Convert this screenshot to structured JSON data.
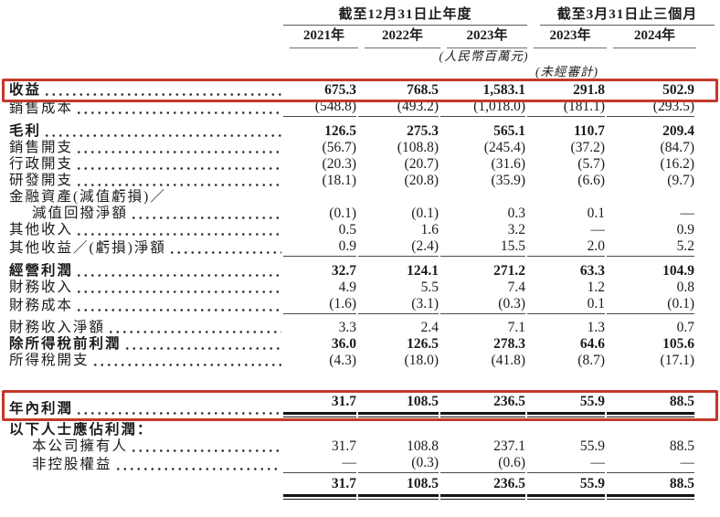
{
  "table": {
    "col_groups": [
      {
        "label": "截至12月31日止年度",
        "span": 3
      },
      {
        "label": "截至3月31日止三個月",
        "span": 2
      }
    ],
    "columns": [
      "2021年",
      "2022年",
      "2023年",
      "2023年",
      "2024年"
    ],
    "unit_note": "(人民幣百萬元)",
    "unaudited_note": "(未經審計)",
    "rows": [
      {
        "label": "收益",
        "bold": true,
        "highlight": true,
        "values": [
          "675.3",
          "768.5",
          "1,583.1",
          "291.8",
          "502.9"
        ]
      },
      {
        "label": "銷售成本",
        "rule_below": true,
        "values": [
          "(548.8)",
          "(493.2)",
          "(1,018.0)",
          "(181.1)",
          "(293.5)"
        ]
      },
      {
        "label": "毛利",
        "bold": true,
        "gap_before": 9,
        "values": [
          "126.5",
          "275.3",
          "565.1",
          "110.7",
          "209.4"
        ]
      },
      {
        "label": "銷售開支",
        "values": [
          "(56.7)",
          "(108.8)",
          "(245.4)",
          "(37.2)",
          "(84.7)"
        ]
      },
      {
        "label": "行政開支",
        "values": [
          "(20.3)",
          "(20.7)",
          "(31.6)",
          "(5.7)",
          "(16.2)"
        ]
      },
      {
        "label": "研發開支",
        "values": [
          "(18.1)",
          "(20.8)",
          "(35.9)",
          "(6.6)",
          "(9.7)"
        ]
      },
      {
        "label": "金融資產(減值虧損)／",
        "no_leader": true,
        "values": null
      },
      {
        "label": "減值回撥淨額",
        "indent": true,
        "values": [
          "(0.1)",
          "(0.1)",
          "0.3",
          "0.1",
          "—"
        ]
      },
      {
        "label": "其他收入",
        "values": [
          "0.5",
          "1.6",
          "3.2",
          "—",
          "0.9"
        ]
      },
      {
        "label": "其他收益／(虧損)淨額",
        "rule_below": true,
        "values": [
          "0.9",
          "(2.4)",
          "15.5",
          "2.0",
          "5.2"
        ]
      },
      {
        "label": "經營利潤",
        "bold": true,
        "gap_before": 9,
        "values": [
          "32.7",
          "124.1",
          "271.2",
          "63.3",
          "104.9"
        ]
      },
      {
        "label": "財務收入",
        "values": [
          "4.9",
          "5.5",
          "7.4",
          "1.2",
          "0.8"
        ]
      },
      {
        "label": "財務成本",
        "rule_below": true,
        "values": [
          "(1.6)",
          "(3.1)",
          "(0.3)",
          "0.1",
          "(0.1)"
        ]
      },
      {
        "label": "財務收入淨額",
        "gap_before": 8,
        "values": [
          "3.3",
          "2.4",
          "7.1",
          "1.3",
          "0.7"
        ]
      },
      {
        "label": "除所得稅前利潤",
        "bold": true,
        "values": [
          "36.0",
          "126.5",
          "278.3",
          "64.6",
          "105.6"
        ]
      },
      {
        "label": "所得稅開支",
        "values": [
          "(4.3)",
          "(18.0)",
          "(41.8)",
          "(8.7)",
          "(17.1)"
        ]
      },
      {
        "label": "年內利潤",
        "bold": true,
        "highlight": true,
        "double_rule_below": true,
        "gap_before": 27,
        "values": [
          "31.7",
          "108.5",
          "236.5",
          "55.9",
          "88.5"
        ]
      },
      {
        "label": "以下人士應佔利潤：",
        "bold": true,
        "no_leader": true,
        "gap_before": 13,
        "values": null
      },
      {
        "label": "本公司擁有人",
        "indent": true,
        "values": [
          "31.7",
          "108.8",
          "237.1",
          "55.9",
          "88.5"
        ]
      },
      {
        "label": "非控股權益",
        "indent": true,
        "rule_below": true,
        "values": [
          "—",
          "(0.3)",
          "(0.6)",
          "—",
          "—"
        ]
      },
      {
        "label": "",
        "bold": true,
        "no_leader": true,
        "double_rule_below": true,
        "gap_before": 5,
        "values": [
          "31.7",
          "108.5",
          "236.5",
          "55.9",
          "88.5"
        ]
      }
    ]
  },
  "colors": {
    "highlight_border": "#c5382a",
    "text": "#1b1b1b",
    "rule": "#5a5a5a"
  }
}
